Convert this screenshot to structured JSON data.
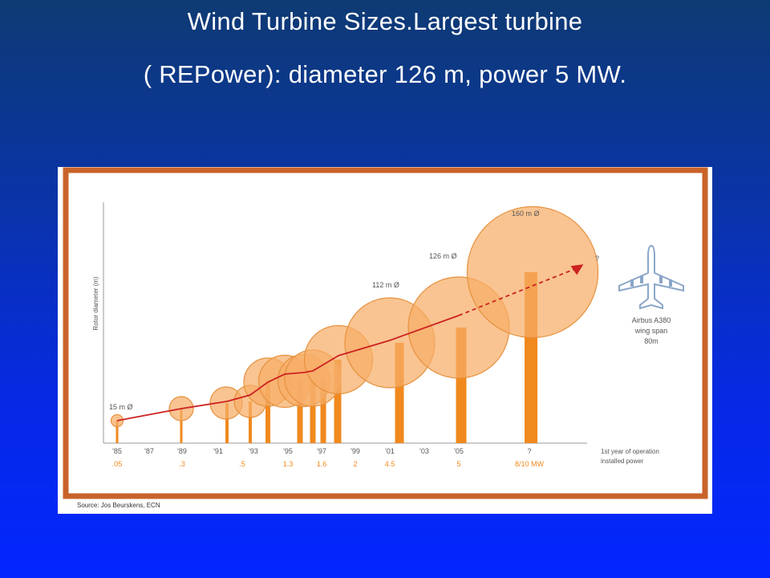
{
  "slide": {
    "title_line1": "Wind Turbine Sizes.Largest turbine",
    "title_line2": "( REPower): diameter  126 m, power 5 MW."
  },
  "figure": {
    "y_axis_label": "Rotor diameter (m)",
    "source": "Source: Jos Beurskens, ECN",
    "legend_line1": "1st year of operation",
    "legend_line2": "installed power",
    "arrow_question": "?",
    "airbus": {
      "line1": "Airbus A380",
      "line2": "wing span",
      "line3": "80m"
    },
    "diameter_labels": [
      "15 m Ø",
      "112 m Ø",
      "126 m Ø",
      "160 m Ø"
    ]
  },
  "chart_data": {
    "type": "scatter",
    "years": [
      "'85",
      "'87",
      "'89",
      "'91",
      "'93",
      "'95",
      "'97",
      "'99",
      "'01",
      "'03",
      "'05",
      "?"
    ],
    "power": [
      ".05",
      ".3",
      ".5",
      "1.3",
      "1.6",
      "2",
      "4.5",
      "5",
      "8/10 MW"
    ],
    "turbines": [
      {
        "year": "'85",
        "diameter": 15,
        "power": ".05"
      },
      {
        "year": "'89",
        "diameter": 30,
        "power": ".3"
      },
      {
        "year": "'91",
        "diameter": 40,
        "power": ".5"
      },
      {
        "year": "'93",
        "diameter": 40,
        "power": ""
      },
      {
        "year": "'93",
        "diameter": 60,
        "power": ""
      },
      {
        "year": "'95",
        "diameter": 65,
        "power": "1.3"
      },
      {
        "year": "'97",
        "diameter": 65,
        "power": "1.6"
      },
      {
        "year": "'97",
        "diameter": 70,
        "power": ""
      },
      {
        "year": "'99",
        "diameter": 85,
        "power": "2"
      },
      {
        "year": "'01",
        "diameter": 112,
        "power": "4.5"
      },
      {
        "year": "'05",
        "diameter": 126,
        "power": "5"
      },
      {
        "year": "?",
        "diameter": 160,
        "power": "8/10 MW"
      }
    ],
    "colors": {
      "rotor": "#f7ad66",
      "rotor_stroke": "#e6913f",
      "tower": "#f0891e",
      "trend": "#cc2222",
      "frame": "#c8632a"
    }
  }
}
